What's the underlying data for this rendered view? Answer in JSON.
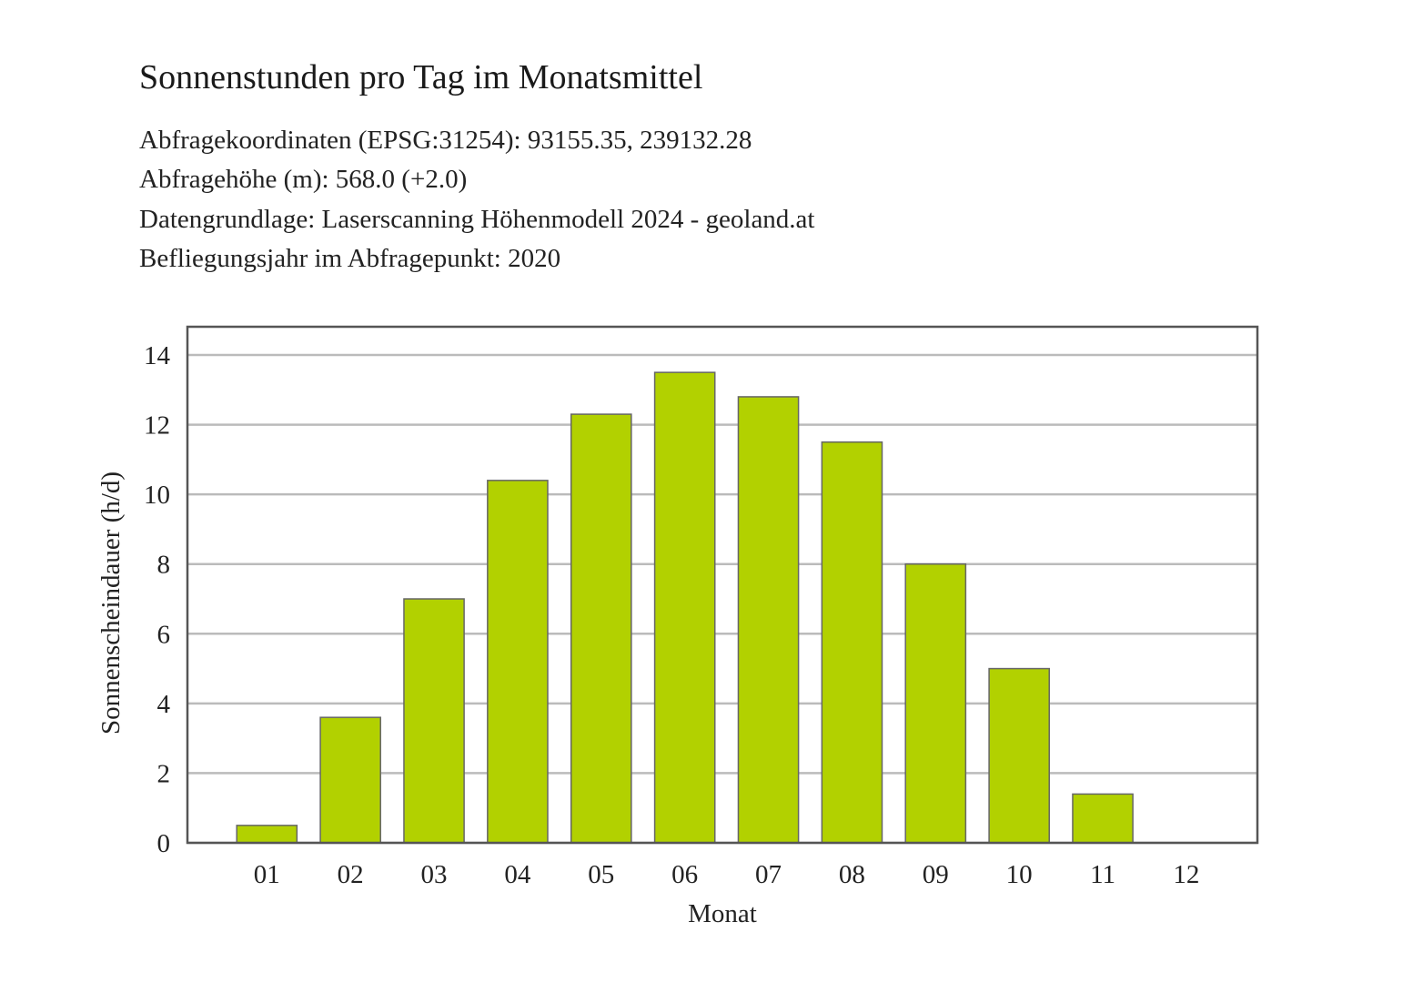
{
  "title": "Sonnenstunden pro Tag im Monatsmittel",
  "info_lines": [
    "Abfragekoordinaten (EPSG:31254): 93155.35, 239132.28",
    "Abfragehöhe (m): 568.0 (+2.0)",
    "Datengrundlage: Laserscanning Höhenmodell 2024 - geoland.at",
    "Befliegungsjahr im Abfragepunkt: 2020"
  ],
  "colors": {
    "bar": "#b2d100",
    "bar_stroke": "#666666",
    "grid": "#bbbbbb",
    "frame": "#555555"
  },
  "chart_data": {
    "type": "bar",
    "categories": [
      "01",
      "02",
      "03",
      "04",
      "05",
      "06",
      "07",
      "08",
      "09",
      "10",
      "11",
      "12"
    ],
    "values": [
      0.5,
      3.6,
      7.0,
      10.4,
      12.3,
      13.5,
      12.8,
      11.5,
      8.0,
      5.0,
      1.4,
      0.0
    ],
    "xlabel": "Monat",
    "ylabel": "Sonnenscheindauer (h/d)",
    "ylim": [
      0,
      14
    ],
    "yticks": [
      "0",
      "2",
      "4",
      "6",
      "8",
      "10",
      "12",
      "14"
    ],
    "grid": true
  }
}
